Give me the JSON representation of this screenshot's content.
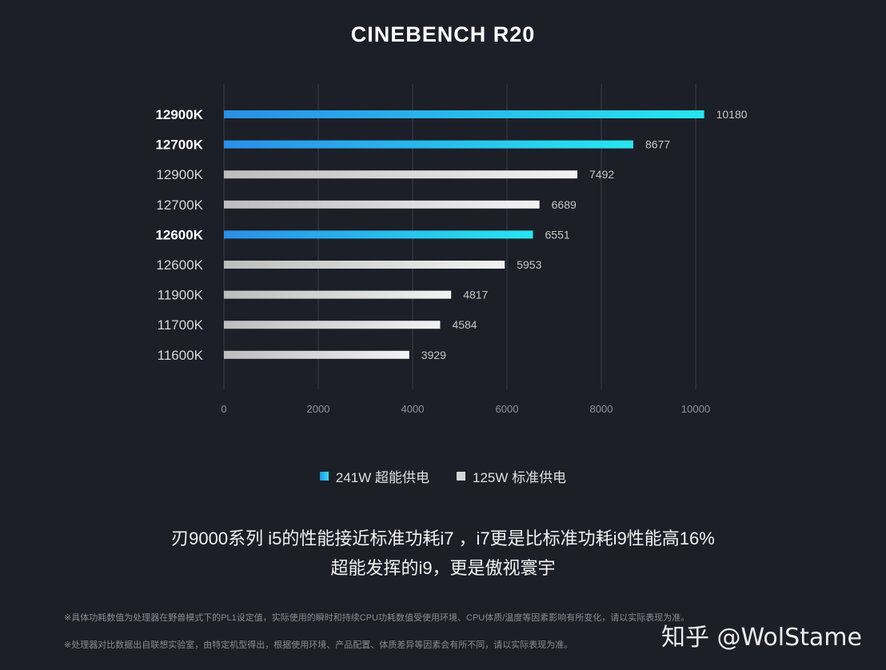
{
  "chart_data": {
    "type": "bar",
    "orientation": "horizontal",
    "title": "CINEBENCH R20",
    "categories": [
      "12900K",
      "12700K",
      "12900K",
      "12700K",
      "12600K",
      "12600K",
      "11900K",
      "11700K",
      "11600K"
    ],
    "values": [
      10180,
      8677,
      7492,
      6689,
      6551,
      5953,
      4817,
      4584,
      3929
    ],
    "groups": [
      "241W",
      "241W",
      "125W",
      "125W",
      "241W",
      "125W",
      "125W",
      "125W",
      "125W"
    ],
    "series": [
      {
        "key": "241W",
        "name": "241W 超能供电",
        "color": "#29b6f6"
      },
      {
        "key": "125W",
        "name": "125W 标准供电",
        "color": "#d6d6d6"
      }
    ],
    "xlim": [
      0,
      10000
    ],
    "xticks": [
      0,
      2000,
      4000,
      6000,
      8000,
      10000
    ],
    "grid": true,
    "legend_position": "bottom"
  },
  "headline": {
    "line1": "刃9000系列 i5的性能接近标准功耗i7 ，i7更是比标准功耗i9性能高16%",
    "line2": "超能发挥的i9，更是傲视寰宇"
  },
  "footnotes": [
    "※具体功耗数值为处理器在野兽模式下的PL1设定值，实际使用的瞬时和持续CPU功耗数值受使用环境、CPU体质/温度等因素影响有所变化，请以实际表现为准。",
    "※处理器对比数据出自联想实验室，由特定机型得出，根据使用环境、产品配置、体质差异等因素会有所不同，请以实际表现为准。"
  ],
  "watermark": "知乎 @WolStame"
}
